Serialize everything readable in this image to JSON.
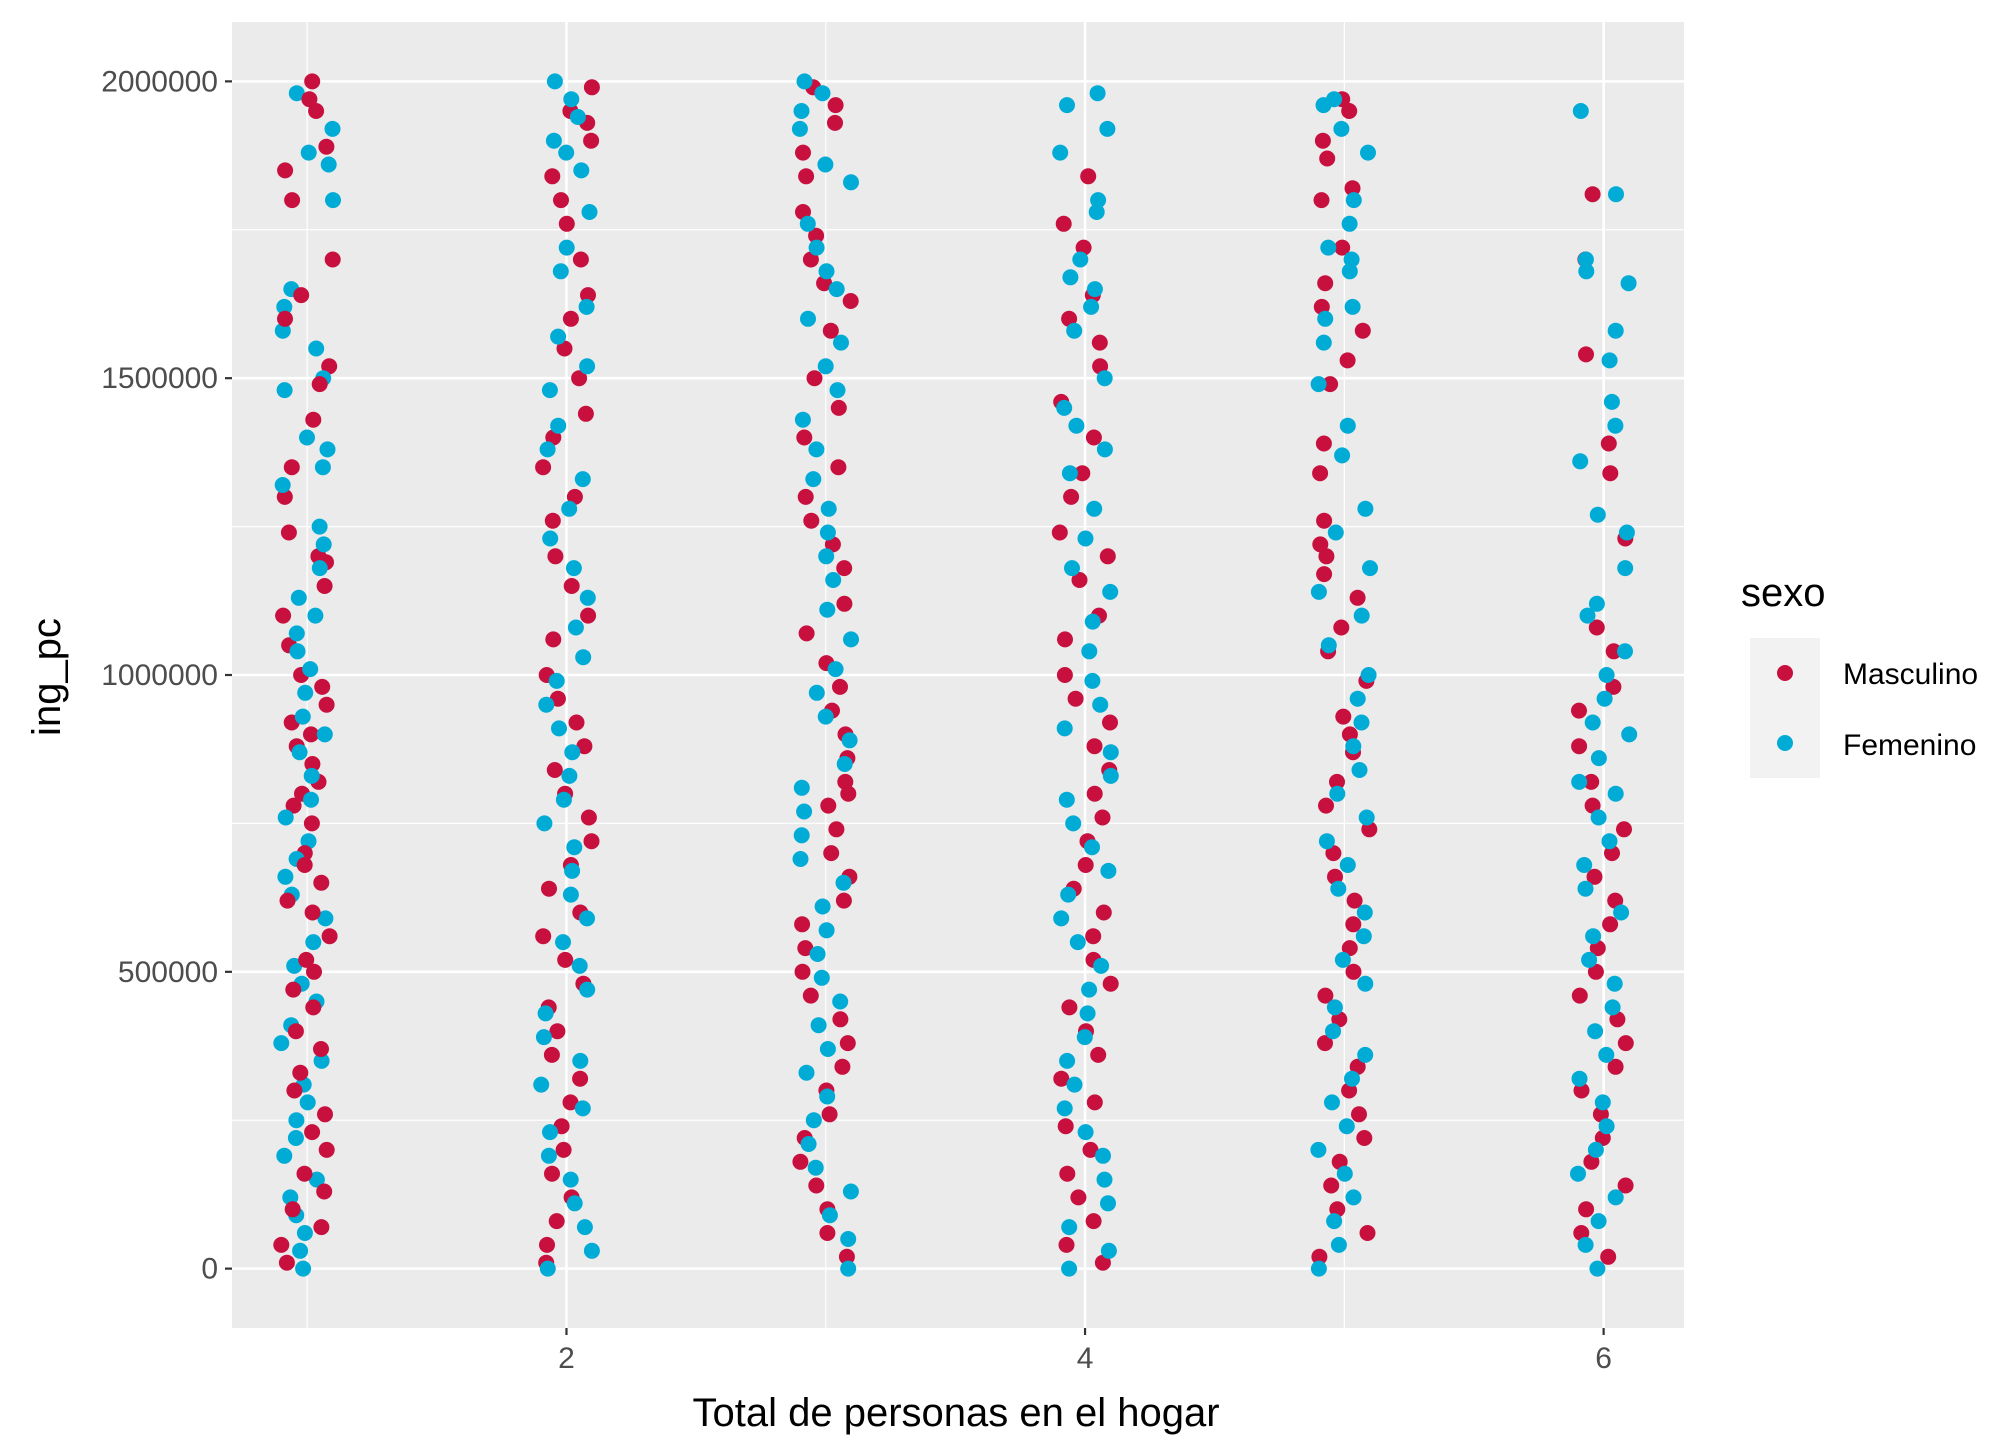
{
  "chart_data": {
    "type": "scatter",
    "title": "",
    "xlabel": "Total de personas en el hogar",
    "ylabel": "ing_pc",
    "xlim": [
      0.71,
      6.31
    ],
    "ylim": [
      -100000,
      2100000
    ],
    "x_ticks": [
      2,
      4,
      6
    ],
    "x_tick_labels": [
      "2",
      "4",
      "6"
    ],
    "y_ticks": [
      0,
      500000,
      1000000,
      1500000,
      2000000
    ],
    "y_tick_labels": [
      "0",
      "500000",
      "1000000",
      "1500000",
      "2000000"
    ],
    "grid": true,
    "jitter_width": 0.1,
    "legend": {
      "title": "sexo",
      "position": "right",
      "entries": [
        "Masculino",
        "Femenino"
      ]
    },
    "series": [
      {
        "name": "Masculino",
        "color": "#c8103e",
        "points_by_x": [
          {
            "x": 1,
            "y": [
              2000000,
              1970000,
              1950000,
              1890000,
              1850000,
              1800000,
              1700000,
              1640000,
              1600000,
              1520000,
              1490000,
              1430000,
              1350000,
              1300000,
              1240000,
              1200000,
              1190000,
              1150000,
              1100000,
              1050000,
              1000000,
              980000,
              950000,
              920000,
              900000,
              880000,
              850000,
              820000,
              800000,
              780000,
              750000,
              700000,
              680000,
              650000,
              620000,
              600000,
              560000,
              520000,
              500000,
              470000,
              440000,
              400000,
              370000,
              330000,
              300000,
              260000,
              230000,
              200000,
              160000,
              130000,
              100000,
              70000,
              40000,
              10000
            ]
          },
          {
            "x": 2,
            "y": [
              1990000,
              1950000,
              1930000,
              1900000,
              1840000,
              1800000,
              1760000,
              1700000,
              1640000,
              1600000,
              1550000,
              1500000,
              1440000,
              1400000,
              1350000,
              1300000,
              1260000,
              1200000,
              1150000,
              1100000,
              1060000,
              1000000,
              960000,
              920000,
              880000,
              840000,
              800000,
              760000,
              720000,
              680000,
              640000,
              600000,
              560000,
              520000,
              480000,
              440000,
              400000,
              360000,
              320000,
              280000,
              240000,
              200000,
              160000,
              120000,
              80000,
              40000,
              10000
            ]
          },
          {
            "x": 3,
            "y": [
              1990000,
              1960000,
              1930000,
              1880000,
              1840000,
              1780000,
              1740000,
              1700000,
              1660000,
              1630000,
              1580000,
              1500000,
              1450000,
              1400000,
              1350000,
              1300000,
              1260000,
              1220000,
              1180000,
              1120000,
              1070000,
              1020000,
              980000,
              940000,
              900000,
              860000,
              820000,
              800000,
              780000,
              740000,
              700000,
              660000,
              620000,
              580000,
              540000,
              500000,
              460000,
              420000,
              380000,
              340000,
              300000,
              260000,
              220000,
              180000,
              140000,
              100000,
              60000,
              20000
            ]
          },
          {
            "x": 4,
            "y": [
              1840000,
              1760000,
              1720000,
              1640000,
              1600000,
              1560000,
              1520000,
              1460000,
              1400000,
              1340000,
              1300000,
              1240000,
              1200000,
              1160000,
              1100000,
              1060000,
              1000000,
              960000,
              920000,
              880000,
              840000,
              800000,
              760000,
              720000,
              680000,
              640000,
              600000,
              560000,
              520000,
              480000,
              440000,
              400000,
              360000,
              320000,
              280000,
              240000,
              200000,
              160000,
              120000,
              80000,
              40000,
              10000
            ]
          },
          {
            "x": 5,
            "y": [
              1970000,
              1950000,
              1900000,
              1870000,
              1820000,
              1800000,
              1720000,
              1660000,
              1620000,
              1580000,
              1530000,
              1490000,
              1390000,
              1340000,
              1260000,
              1220000,
              1200000,
              1170000,
              1130000,
              1080000,
              1040000,
              990000,
              930000,
              900000,
              870000,
              820000,
              780000,
              740000,
              700000,
              660000,
              620000,
              580000,
              540000,
              500000,
              460000,
              420000,
              380000,
              340000,
              300000,
              260000,
              220000,
              180000,
              140000,
              100000,
              60000,
              20000
            ]
          },
          {
            "x": 6,
            "y": [
              1810000,
              1700000,
              1540000,
              1390000,
              1340000,
              1230000,
              1080000,
              1040000,
              980000,
              940000,
              880000,
              820000,
              780000,
              740000,
              700000,
              660000,
              620000,
              580000,
              540000,
              500000,
              460000,
              420000,
              380000,
              340000,
              300000,
              260000,
              220000,
              180000,
              140000,
              100000,
              60000,
              20000
            ]
          }
        ]
      },
      {
        "name": "Femenino",
        "color": "#00acd6",
        "points_by_x": [
          {
            "x": 1,
            "y": [
              1980000,
              1920000,
              1880000,
              1860000,
              1800000,
              1650000,
              1620000,
              1580000,
              1550000,
              1500000,
              1480000,
              1400000,
              1380000,
              1350000,
              1320000,
              1250000,
              1220000,
              1180000,
              1130000,
              1100000,
              1070000,
              1040000,
              1010000,
              970000,
              930000,
              900000,
              870000,
              830000,
              790000,
              760000,
              720000,
              690000,
              660000,
              630000,
              590000,
              550000,
              510000,
              480000,
              450000,
              410000,
              380000,
              350000,
              310000,
              280000,
              250000,
              220000,
              190000,
              150000,
              120000,
              90000,
              60000,
              30000,
              0
            ]
          },
          {
            "x": 2,
            "y": [
              2000000,
              1970000,
              1940000,
              1900000,
              1880000,
              1850000,
              1780000,
              1720000,
              1680000,
              1620000,
              1570000,
              1520000,
              1480000,
              1420000,
              1380000,
              1330000,
              1280000,
              1230000,
              1180000,
              1130000,
              1080000,
              1030000,
              990000,
              950000,
              910000,
              870000,
              830000,
              790000,
              750000,
              710000,
              670000,
              630000,
              590000,
              550000,
              510000,
              470000,
              430000,
              390000,
              350000,
              310000,
              270000,
              230000,
              190000,
              150000,
              110000,
              70000,
              30000,
              0
            ]
          },
          {
            "x": 3,
            "y": [
              2000000,
              1980000,
              1950000,
              1920000,
              1860000,
              1830000,
              1760000,
              1720000,
              1680000,
              1650000,
              1600000,
              1560000,
              1520000,
              1480000,
              1430000,
              1380000,
              1330000,
              1280000,
              1240000,
              1200000,
              1160000,
              1110000,
              1060000,
              1010000,
              970000,
              930000,
              890000,
              850000,
              810000,
              770000,
              730000,
              690000,
              650000,
              610000,
              570000,
              530000,
              490000,
              450000,
              410000,
              370000,
              330000,
              290000,
              250000,
              210000,
              170000,
              130000,
              90000,
              50000,
              0
            ]
          },
          {
            "x": 4,
            "y": [
              1980000,
              1960000,
              1920000,
              1880000,
              1800000,
              1780000,
              1700000,
              1670000,
              1650000,
              1620000,
              1580000,
              1500000,
              1450000,
              1420000,
              1380000,
              1340000,
              1280000,
              1230000,
              1180000,
              1140000,
              1090000,
              1040000,
              990000,
              950000,
              910000,
              870000,
              830000,
              790000,
              750000,
              710000,
              670000,
              630000,
              590000,
              550000,
              510000,
              470000,
              430000,
              390000,
              350000,
              310000,
              270000,
              230000,
              190000,
              150000,
              110000,
              70000,
              30000,
              0
            ]
          },
          {
            "x": 5,
            "y": [
              1970000,
              1960000,
              1920000,
              1880000,
              1800000,
              1760000,
              1720000,
              1700000,
              1680000,
              1620000,
              1600000,
              1560000,
              1490000,
              1420000,
              1370000,
              1280000,
              1240000,
              1180000,
              1140000,
              1100000,
              1050000,
              1000000,
              960000,
              920000,
              880000,
              840000,
              800000,
              760000,
              720000,
              680000,
              640000,
              600000,
              560000,
              520000,
              480000,
              440000,
              400000,
              360000,
              320000,
              280000,
              240000,
              200000,
              160000,
              120000,
              80000,
              40000,
              0
            ]
          },
          {
            "x": 6,
            "y": [
              1950000,
              1810000,
              1700000,
              1680000,
              1660000,
              1580000,
              1530000,
              1460000,
              1420000,
              1360000,
              1270000,
              1240000,
              1180000,
              1120000,
              1100000,
              1040000,
              1000000,
              960000,
              920000,
              900000,
              860000,
              820000,
              800000,
              760000,
              720000,
              680000,
              640000,
              600000,
              560000,
              520000,
              480000,
              440000,
              400000,
              360000,
              320000,
              280000,
              240000,
              200000,
              160000,
              120000,
              80000,
              40000,
              0
            ]
          }
        ]
      }
    ]
  }
}
